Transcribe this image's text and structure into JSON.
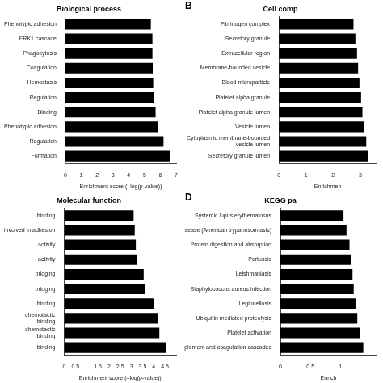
{
  "chart_data": [
    {
      "type": "bar",
      "orientation": "horizontal",
      "title": "Biological process",
      "categories": [
        "Phenotypic adhesion",
        "ERK1 cascade",
        "Phagocytosis",
        "Coagulation",
        "Hemostasis",
        "Regulation",
        "Binding",
        "Phenotypic adhesion",
        "Regulation",
        "Formation"
      ],
      "values": [
        5.4,
        5.5,
        5.5,
        5.52,
        5.55,
        5.6,
        5.7,
        5.85,
        6.2,
        6.6
      ],
      "color": "#000000",
      "xlim": [
        0,
        7
      ],
      "xticks": [
        0,
        1,
        2,
        3,
        4,
        5,
        6,
        7
      ],
      "xlabel": "Enrichment score (–log(p-value))",
      "grid": false
    },
    {
      "type": "bar",
      "orientation": "horizontal",
      "title": "Cell comp",
      "annotations": [
        "B"
      ],
      "categories": [
        "Fibrinogen complex",
        "Secretory granule",
        "Extracellular region",
        "Membrane-bounded vesicle",
        "Blood microparticle",
        "Platelet alpha granule",
        "Platelet alpha granule lumen",
        "Vesicle lumen",
        "Cytoplasmic membrane-bounded\nvesicle lumen",
        "Secretory granule lumen"
      ],
      "values": [
        2.75,
        2.82,
        2.88,
        2.92,
        2.97,
        3.03,
        3.08,
        3.15,
        3.22,
        3.28
      ],
      "color": "#000000",
      "xlim": [
        0,
        3.6
      ],
      "xticks": [
        0,
        1,
        2,
        3
      ],
      "xlabel": "Enrichmen",
      "grid": false
    },
    {
      "type": "bar",
      "orientation": "horizontal",
      "title": "Molecular function",
      "categories": [
        "binding",
        "involved in adhesion",
        "activity",
        "activity",
        "bridging",
        "bridging",
        "binding",
        "chemotactic\nbinding",
        "chemotactic\nbinding",
        "binding"
      ],
      "values": [
        3.1,
        3.15,
        3.2,
        3.25,
        3.55,
        3.6,
        4.0,
        4.2,
        4.25,
        4.55
      ],
      "color": "#000000",
      "xlim": [
        0,
        5.0
      ],
      "xticks": [
        0,
        0.5,
        1.5,
        2,
        2.5,
        3,
        3.5,
        4,
        4.5
      ],
      "xlabel": "Enrichment score (–log(p-value))",
      "grid": false
    },
    {
      "type": "bar",
      "orientation": "horizontal",
      "title": "KEGG pa",
      "annotations": [
        "D"
      ],
      "categories": [
        "Systemic lupus erythematosus",
        "Chagas disease (American trypanosomiasis)",
        "Protein digestion and absorption",
        "Pertussis",
        "Leishmaniasis",
        "Staphylococcus aureus infection",
        "Legionellosis",
        "Ubiquitin mediated proteolysis",
        "Platelet activation",
        "Complement and coagulation cascades"
      ],
      "values": [
        1.05,
        1.1,
        1.15,
        1.18,
        1.2,
        1.22,
        1.25,
        1.28,
        1.32,
        1.38
      ],
      "color": "#000000",
      "xlim": [
        0,
        1.6
      ],
      "xticks": [
        0,
        0.5,
        1
      ],
      "xlabel": "Enrich",
      "grid": false
    }
  ]
}
